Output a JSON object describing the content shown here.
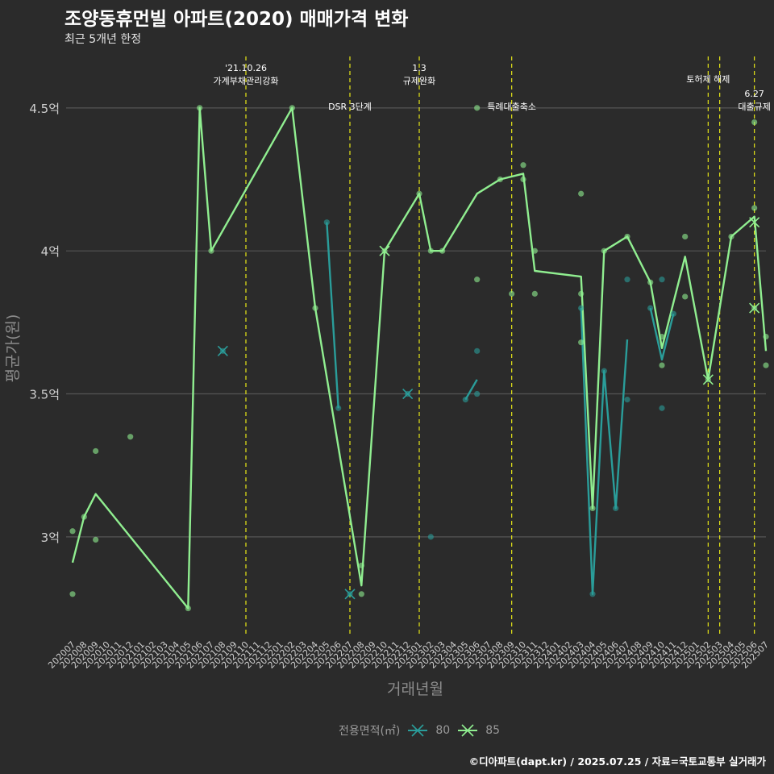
{
  "title": "조양동휴먼빌 아파트(2020) 매매가격 변화",
  "subtitle": "최근 5개년 한정",
  "caption": "©디아파트(dapt.kr) / 2025.07.25 / 자료=국토교통부 실거래가",
  "colors": {
    "background": "#2b2b2b",
    "grid": "#555555",
    "series_80": "#2a9d9a",
    "series_85": "#90ee90",
    "event_line": "#e6e617",
    "tick_text": "#cfcfcf",
    "axis_title": "#8c8c8c"
  },
  "chart_data": {
    "type": "line",
    "xlabel": "거래년월",
    "ylabel": "평균가(원)",
    "ylim": [
      2.65,
      4.68
    ],
    "y_ticks": [
      {
        "value": 3.0,
        "label": "3억"
      },
      {
        "value": 3.5,
        "label": "3.5억"
      },
      {
        "value": 4.0,
        "label": "4억"
      },
      {
        "value": 4.5,
        "label": "4.5억"
      }
    ],
    "grid": true,
    "legend": {
      "title": "전용면적(㎡)",
      "position": "bottom",
      "entries": [
        "80",
        "85"
      ]
    },
    "categories": [
      "202007",
      "202008",
      "202009",
      "202010",
      "202011",
      "202012",
      "202101",
      "202102",
      "202103",
      "202104",
      "202105",
      "202106",
      "202107",
      "202108",
      "202109",
      "202110",
      "202111",
      "202112",
      "202201",
      "202202",
      "202203",
      "202204",
      "202205",
      "202206",
      "202207",
      "202208",
      "202209",
      "202210",
      "202211",
      "202212",
      "202301",
      "202302",
      "202303",
      "202304",
      "202305",
      "202306",
      "202307",
      "202308",
      "202309",
      "202310",
      "202311",
      "202312",
      "202401",
      "202402",
      "202403",
      "202404",
      "202405",
      "202406",
      "202407",
      "202408",
      "202409",
      "202410",
      "202411",
      "202412",
      "202501",
      "202502",
      "202503",
      "202504",
      "202505",
      "202506",
      "202507"
    ],
    "events": [
      {
        "x": "202110",
        "label": "'21.10.26\n가계부채관리강화",
        "level": 0
      },
      {
        "x": "202207",
        "label": "DSR 3단계",
        "level": 2
      },
      {
        "x": "202301",
        "label": "1.3\n규제완화",
        "level": 0
      },
      {
        "x": "202309",
        "label": "특례대출축소",
        "level": 2
      },
      {
        "x": "202502",
        "label": "토허제 해제",
        "level": 1
      },
      {
        "x": "202503",
        "label": "",
        "level": 1
      },
      {
        "x": "202506",
        "label": "6.27\n대출규제",
        "level": 3
      }
    ],
    "series": [
      {
        "name": "80",
        "line": [
          {
            "segment": [
              [
                "202205",
                4.1
              ],
              [
                "202206",
                3.45
              ]
            ]
          },
          {
            "segment": [
              [
                "202207",
                2.8
              ]
            ]
          },
          {
            "segment": [
              [
                "202212",
                3.5
              ]
            ]
          },
          {
            "segment": [
              [
                "202305",
                3.48
              ],
              [
                "202306",
                3.55
              ]
            ]
          },
          {
            "segment": [
              [
                "202403",
                3.8
              ],
              [
                "202404",
                2.8
              ],
              [
                "202405",
                3.58
              ],
              [
                "202406",
                3.1
              ],
              [
                "202407",
                3.69
              ]
            ]
          },
          {
            "segment": [
              [
                "202409",
                3.8
              ],
              [
                "202410",
                3.62
              ],
              [
                "202411",
                3.78
              ]
            ]
          }
        ],
        "points": [
          [
            "202108",
            3.65
          ],
          [
            "202205",
            4.1
          ],
          [
            "202206",
            3.45
          ],
          [
            "202207",
            2.8
          ],
          [
            "202212",
            3.5
          ],
          [
            "202302",
            3.0
          ],
          [
            "202305",
            3.48
          ],
          [
            "202306",
            3.5
          ],
          [
            "202306",
            3.65
          ],
          [
            "202403",
            3.8
          ],
          [
            "202404",
            2.8
          ],
          [
            "202405",
            3.58
          ],
          [
            "202406",
            3.1
          ],
          [
            "202407",
            3.48
          ],
          [
            "202407",
            3.9
          ],
          [
            "202409",
            3.8
          ],
          [
            "202410",
            3.9
          ],
          [
            "202410",
            3.45
          ],
          [
            "202411",
            3.78
          ]
        ],
        "crosses": [
          [
            "202108",
            3.65
          ],
          [
            "202207",
            2.8
          ],
          [
            "202212",
            3.5
          ]
        ]
      },
      {
        "name": "85",
        "line": [
          {
            "segment": [
              [
                "202007",
                2.91
              ],
              [
                "202008",
                3.07
              ],
              [
                "202009",
                3.15
              ],
              [
                "202105",
                2.75
              ],
              [
                "202106",
                4.5
              ],
              [
                "202107",
                4.0
              ],
              [
                "202202",
                4.5
              ],
              [
                "202204",
                3.8
              ],
              [
                "202208",
                2.83
              ],
              [
                "202210",
                4.0
              ],
              [
                "202301",
                4.2
              ],
              [
                "202302",
                4.0
              ],
              [
                "202303",
                4.0
              ],
              [
                "202306",
                4.2
              ],
              [
                "202308",
                4.25
              ],
              [
                "202310",
                4.27
              ],
              [
                "202311",
                3.93
              ],
              [
                "202403",
                3.91
              ],
              [
                "202404",
                3.1
              ],
              [
                "202405",
                4.0
              ],
              [
                "202407",
                4.05
              ],
              [
                "202409",
                3.89
              ],
              [
                "202410",
                3.66
              ],
              [
                "202412",
                3.98
              ],
              [
                "202502",
                3.55
              ],
              [
                "202504",
                4.05
              ],
              [
                "202506",
                4.12
              ],
              [
                "202507",
                3.65
              ]
            ]
          }
        ],
        "points": [
          [
            "202007",
            3.02
          ],
          [
            "202007",
            2.8
          ],
          [
            "202008",
            3.07
          ],
          [
            "202009",
            3.3
          ],
          [
            "202009",
            2.99
          ],
          [
            "202012",
            3.35
          ],
          [
            "202105",
            2.75
          ],
          [
            "202106",
            4.5
          ],
          [
            "202107",
            4.0
          ],
          [
            "202202",
            4.5
          ],
          [
            "202204",
            3.8
          ],
          [
            "202208",
            2.9
          ],
          [
            "202208",
            2.8
          ],
          [
            "202210",
            4.0
          ],
          [
            "202301",
            4.2
          ],
          [
            "202302",
            4.0
          ],
          [
            "202303",
            4.0
          ],
          [
            "202306",
            4.5
          ],
          [
            "202306",
            3.9
          ],
          [
            "202308",
            4.25
          ],
          [
            "202309",
            3.85
          ],
          [
            "202310",
            4.3
          ],
          [
            "202310",
            4.25
          ],
          [
            "202311",
            4.0
          ],
          [
            "202311",
            3.85
          ],
          [
            "202403",
            4.2
          ],
          [
            "202403",
            3.85
          ],
          [
            "202403",
            3.68
          ],
          [
            "202404",
            3.1
          ],
          [
            "202405",
            4.0
          ],
          [
            "202407",
            4.05
          ],
          [
            "202409",
            3.89
          ],
          [
            "202410",
            3.7
          ],
          [
            "202410",
            3.6
          ],
          [
            "202412",
            4.05
          ],
          [
            "202412",
            3.84
          ],
          [
            "202502",
            3.55
          ],
          [
            "202504",
            4.05
          ],
          [
            "202506",
            4.15
          ],
          [
            "202506",
            4.45
          ],
          [
            "202506",
            3.8
          ],
          [
            "202507",
            3.7
          ],
          [
            "202507",
            3.6
          ]
        ],
        "crosses": [
          [
            "202210",
            4.0
          ],
          [
            "202502",
            3.55
          ],
          [
            "202506",
            4.1
          ],
          [
            "202506",
            3.8
          ]
        ]
      }
    ]
  }
}
